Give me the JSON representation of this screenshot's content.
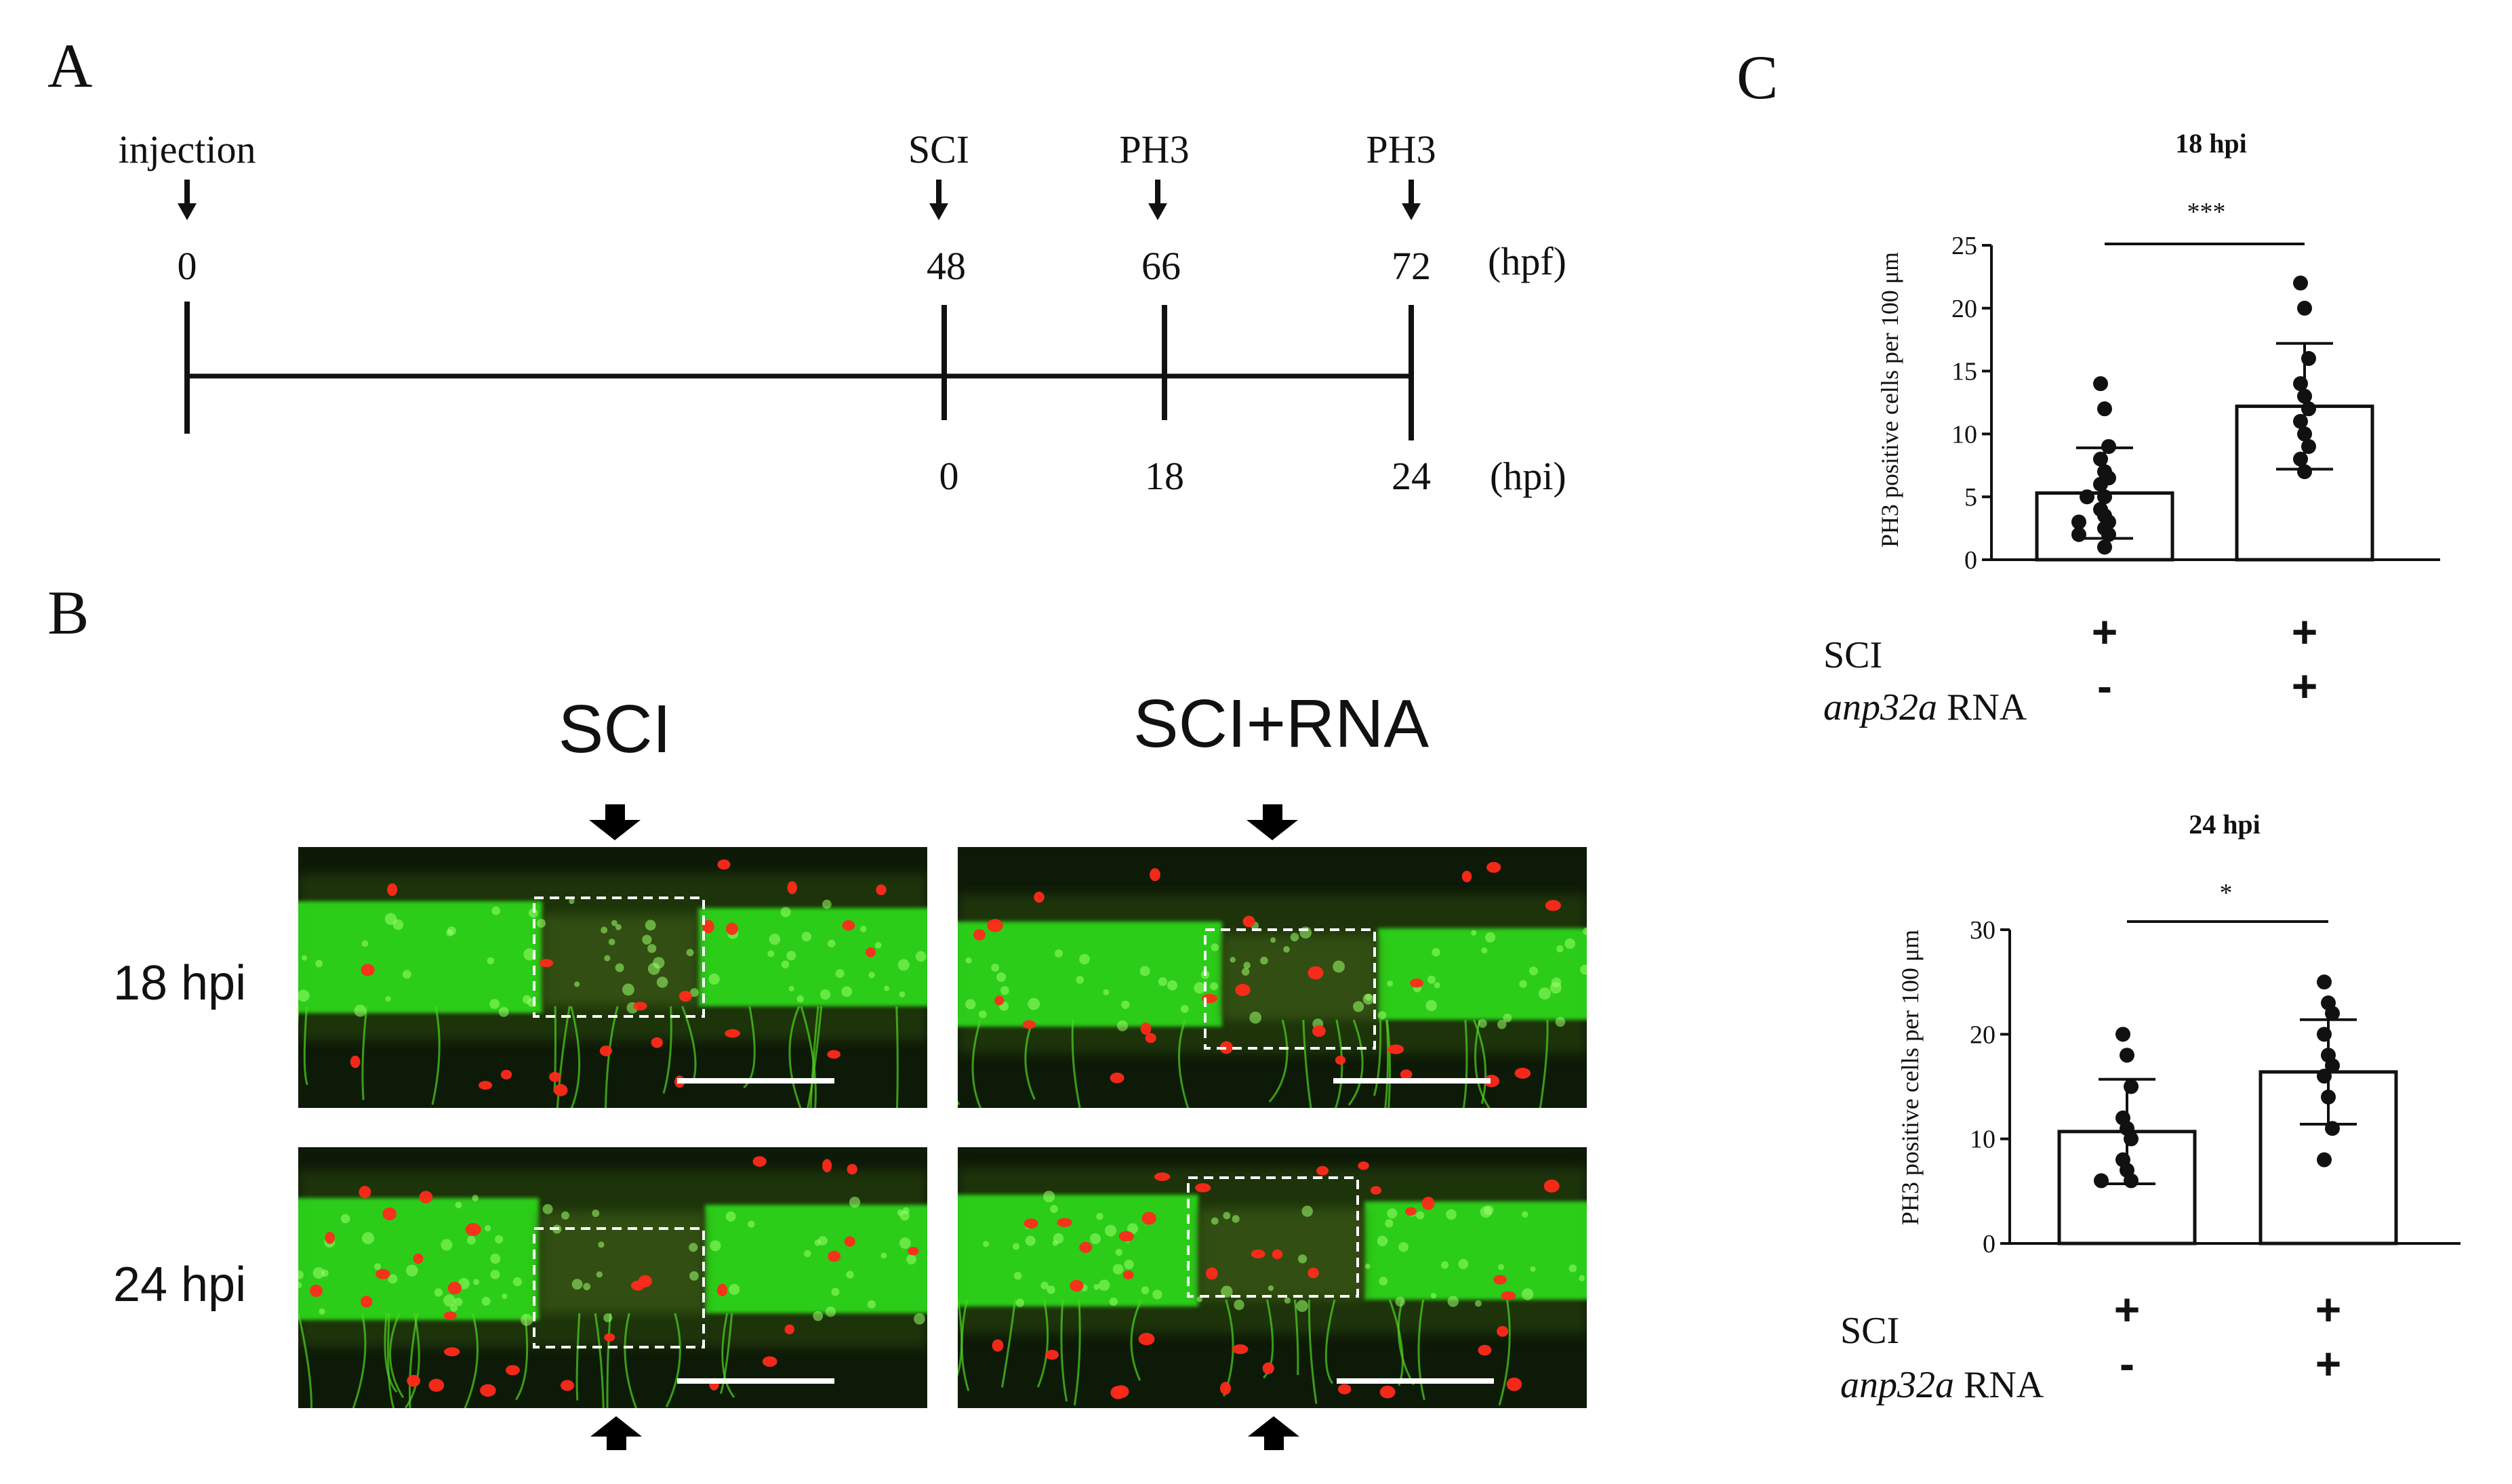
{
  "panel_labels": {
    "a": "A",
    "b": "B",
    "c": "C"
  },
  "timeline": {
    "events": [
      {
        "label": "injection",
        "hpf": "0",
        "hpi": ""
      },
      {
        "label": "SCI",
        "hpf": "48",
        "hpi": "0"
      },
      {
        "label": "PH3",
        "hpf": "66",
        "hpi": "18"
      },
      {
        "label": "PH3",
        "hpf": "72",
        "hpi": "24"
      }
    ],
    "hpf_unit": "(hpf)",
    "hpi_unit": "(hpi)"
  },
  "images": {
    "col_titles": [
      "SCI",
      "SCI+RNA"
    ],
    "row_labels": [
      "18 hpi",
      "24 hpi"
    ],
    "colors": {
      "green_channel": "#2ee81a",
      "red_channel": "#ff2a1a",
      "background": "#0e1a08"
    }
  },
  "chart_data": [
    {
      "type": "bar",
      "title": "18 hpi",
      "ylabel": "PH3 positive cells per 100 μm",
      "xlabel": "",
      "ylim": [
        0,
        25
      ],
      "yticks": [
        "0",
        "5",
        "10",
        "15",
        "20",
        "25"
      ],
      "significance": "***",
      "row_labels": [
        "SCI",
        "anp32a"
      ],
      "row_label_suffix": " RNA",
      "categories": [
        {
          "sci": "+",
          "rna": "-"
        },
        {
          "sci": "+",
          "rna": "+"
        }
      ],
      "means": [
        5.3,
        12.2
      ],
      "sd": [
        3.6,
        5.0
      ],
      "points": [
        [
          14,
          12,
          9,
          8,
          7,
          6.5,
          6,
          5,
          5,
          4,
          3.5,
          3,
          3,
          2.5,
          2,
          2,
          1
        ],
        [
          22,
          20,
          16,
          14,
          13,
          12,
          11,
          10,
          9,
          8,
          7
        ]
      ]
    },
    {
      "type": "bar",
      "title": "24 hpi",
      "ylabel": "PH3 positive cells per 100 μm",
      "xlabel": "",
      "ylim": [
        0,
        30
      ],
      "yticks": [
        "0",
        "10",
        "20",
        "30"
      ],
      "significance": "*",
      "row_labels": [
        "SCI",
        "anp32a"
      ],
      "row_label_suffix": " RNA",
      "categories": [
        {
          "sci": "+",
          "rna": "-"
        },
        {
          "sci": "+",
          "rna": "+"
        }
      ],
      "means": [
        10.7,
        16.4
      ],
      "sd": [
        5.0,
        5.0
      ],
      "points": [
        [
          20,
          18,
          15,
          12,
          11,
          10,
          8,
          7,
          6,
          6
        ],
        [
          25,
          23,
          22,
          20,
          18,
          17,
          16,
          14,
          11,
          8
        ]
      ]
    }
  ]
}
